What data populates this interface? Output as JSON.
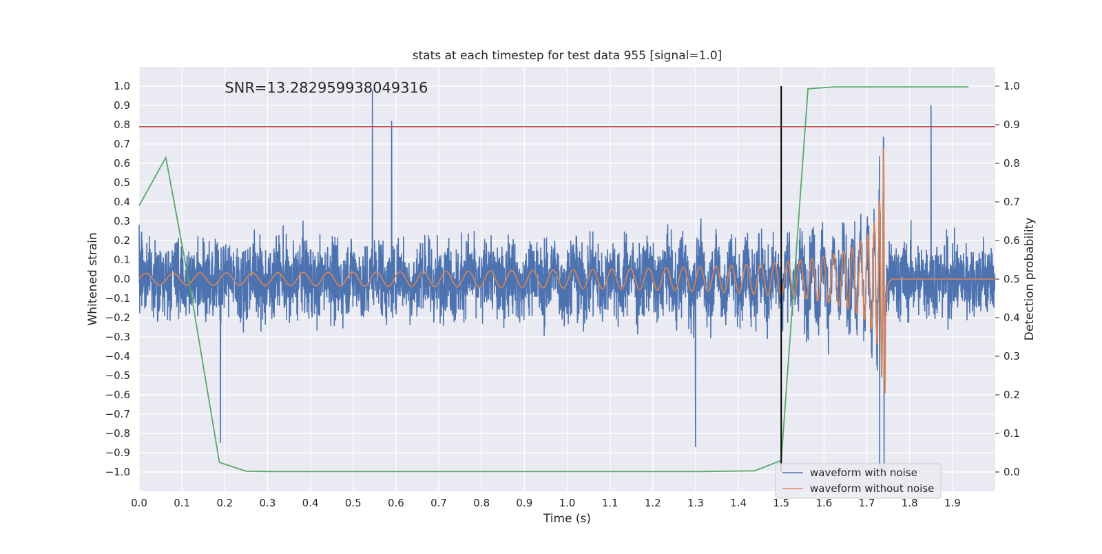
{
  "chart_data": {
    "type": "line",
    "title": "stats at each timestep for test data 955 [signal=1.0]",
    "annotation": "SNR=13.282959938049316",
    "xlabel": "Time (s)",
    "ylabel": "Whitened strain",
    "y2label": "Detection probability",
    "xlim": [
      0.0,
      2.0
    ],
    "ylim": [
      -1.1,
      1.1
    ],
    "y2lim": [
      -0.05,
      1.05
    ],
    "x_ticks": [
      0.0,
      0.1,
      0.2,
      0.3,
      0.4,
      0.5,
      0.6,
      0.7,
      0.8,
      0.9,
      1.0,
      1.1,
      1.2,
      1.3,
      1.4,
      1.5,
      1.6,
      1.7,
      1.8,
      1.9
    ],
    "x_tick_labels": [
      "0.0",
      "0.1",
      "0.2",
      "0.3",
      "0.4",
      "0.5",
      "0.6",
      "0.7",
      "0.8",
      "0.9",
      "1.0",
      "1.1",
      "1.2",
      "1.3",
      "1.4",
      "1.5",
      "1.6",
      "1.7",
      "1.8",
      "1.9"
    ],
    "y_ticks": [
      1.0,
      0.9,
      0.8,
      0.7,
      0.6,
      0.5,
      0.4,
      0.3,
      0.2,
      0.1,
      0.0,
      -0.1,
      -0.2,
      -0.3,
      -0.4,
      -0.5,
      -0.6,
      -0.7,
      -0.8,
      -0.9,
      -1.0
    ],
    "y_tick_labels": [
      "1.0",
      "0.9",
      "0.8",
      "0.7",
      "0.6",
      "0.5",
      "0.4",
      "0.3",
      "0.2",
      "0.1",
      "0.0",
      "−0.1",
      "−0.2",
      "−0.3",
      "−0.4",
      "−0.5",
      "−0.6",
      "−0.7",
      "−0.8",
      "−0.9",
      "−1.0"
    ],
    "y2_ticks": [
      1.0,
      0.9,
      0.8,
      0.7,
      0.6,
      0.5,
      0.4,
      0.3,
      0.2,
      0.1,
      0.0
    ],
    "y2_tick_labels": [
      "1.0",
      "0.9",
      "0.8",
      "0.7",
      "0.6",
      "0.5",
      "0.4",
      "0.3",
      "0.2",
      "0.1",
      "0.0"
    ],
    "grid": true,
    "legend_position": "bottom-right",
    "series": [
      {
        "name": "waveform with noise",
        "color": "#4c72b0",
        "kind": "noisy_waveform",
        "x_range": [
          0.0,
          2.0
        ],
        "y_range": [
          -0.97,
          0.98
        ],
        "peaks": [
          [
            0.545,
            0.98
          ],
          [
            0.59,
            0.82
          ],
          [
            1.85,
            0.9
          ],
          [
            1.73,
            -0.97
          ],
          [
            1.74,
            -0.97
          ],
          [
            1.3,
            -0.87
          ],
          [
            0.19,
            -0.85
          ]
        ]
      },
      {
        "name": "waveform without noise",
        "color": "#dd8452",
        "kind": "chirp",
        "x_range": [
          0.0,
          2.0
        ],
        "start_amplitude": 0.03,
        "peak_amplitude": 0.69,
        "merger_time": 1.745,
        "min_value": -0.59
      },
      {
        "name": "",
        "color": "#55a868",
        "axis": "right",
        "x": [
          0.0,
          0.0625,
          0.125,
          0.1875,
          0.25,
          0.3125,
          0.375,
          0.4375,
          0.5,
          0.5625,
          0.625,
          0.6875,
          0.75,
          0.8125,
          0.875,
          0.9375,
          1.0,
          1.0625,
          1.125,
          1.1875,
          1.25,
          1.3125,
          1.375,
          1.4375,
          1.5,
          1.5625,
          1.625,
          1.6875,
          1.75,
          1.8125,
          1.875,
          1.9375
        ],
        "values": [
          0.69,
          0.815,
          0.44,
          0.025,
          0.002,
          0.001,
          0.001,
          0.001,
          0.001,
          0.001,
          0.001,
          0.001,
          0.001,
          0.001,
          0.001,
          0.001,
          0.001,
          0.001,
          0.001,
          0.001,
          0.001,
          0.001,
          0.002,
          0.003,
          0.03,
          0.993,
          0.998,
          0.998,
          0.998,
          0.998,
          0.998,
          0.998
        ]
      }
    ],
    "hlines": [
      {
        "y": 0.79,
        "color": "#c44e52"
      }
    ],
    "vlines": [
      {
        "x": 1.5,
        "y_from": 0.0,
        "y_to": 1.0,
        "axis": "right",
        "color": "#000000"
      }
    ]
  }
}
